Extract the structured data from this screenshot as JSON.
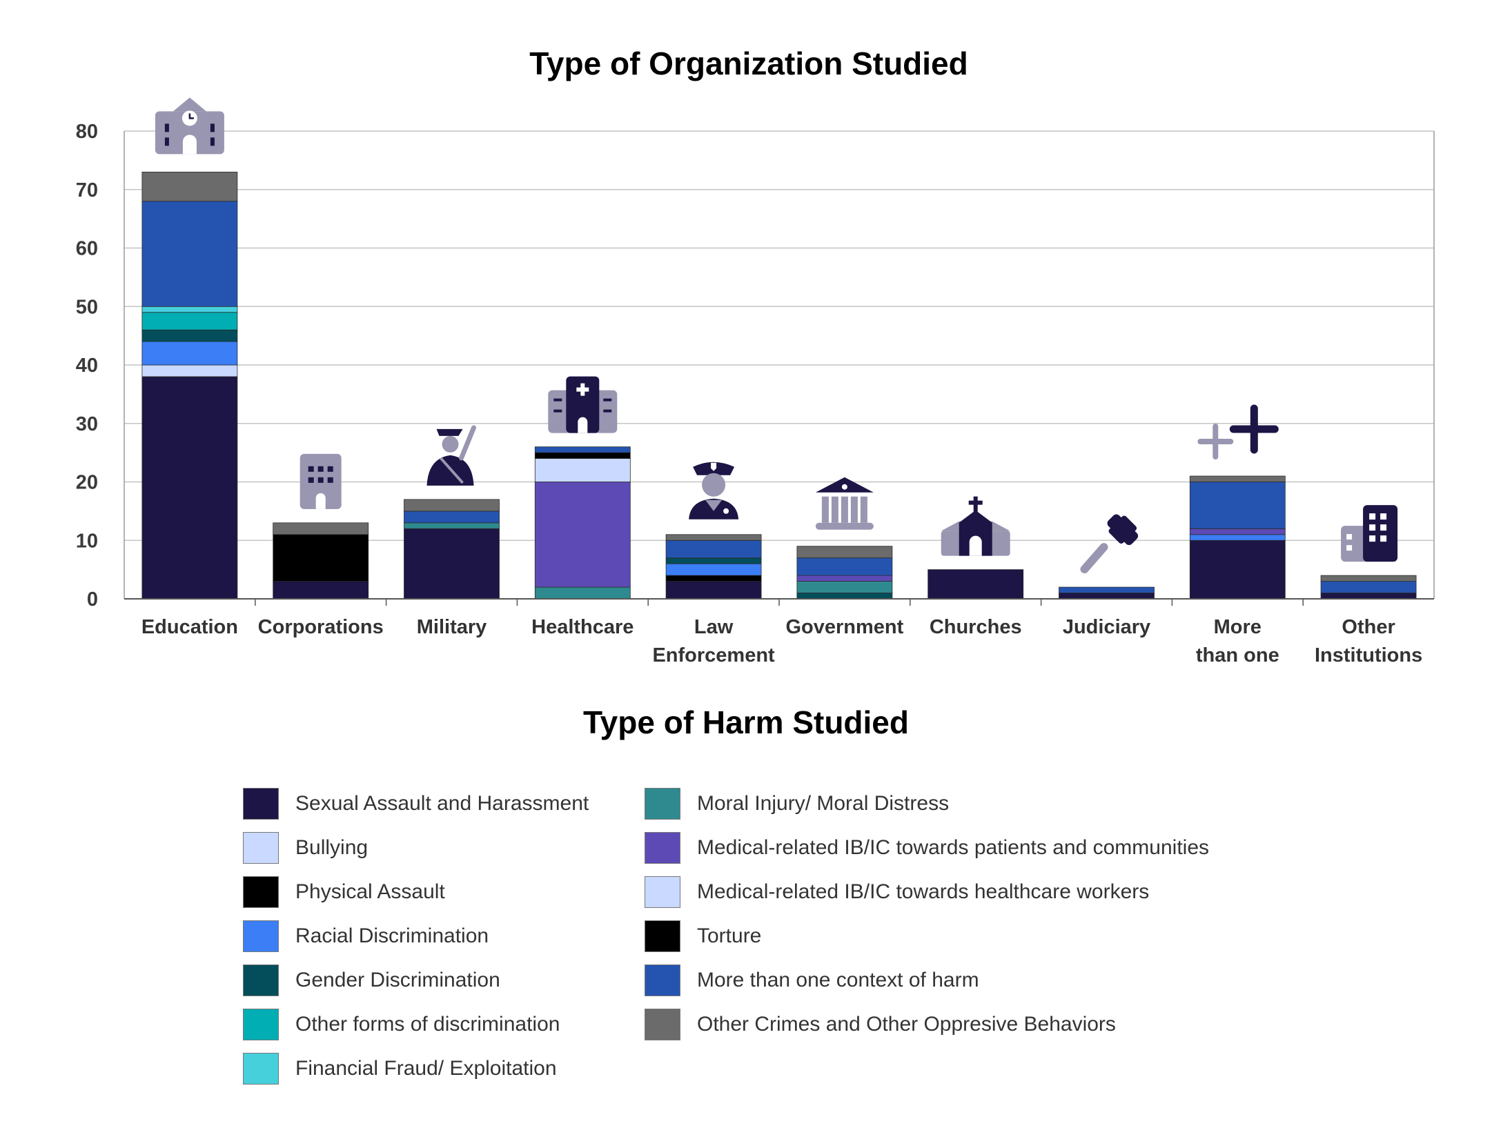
{
  "chart_data": {
    "type": "bar",
    "stacked": true,
    "title": "Type of Organization Studied",
    "ylim": [
      0,
      80
    ],
    "yticks": [
      0,
      10,
      20,
      30,
      40,
      50,
      60,
      70,
      80
    ],
    "grid": true,
    "categories": [
      "Education",
      "Corporations",
      "Military",
      "Healthcare",
      "Law Enforcement",
      "Government",
      "Churches",
      "Judiciary",
      "More than one",
      "Other Institutions"
    ],
    "category_label_lines": [
      [
        "Education"
      ],
      [
        "Corporations"
      ],
      [
        "Military"
      ],
      [
        "Healthcare"
      ],
      [
        "Law",
        "Enforcement"
      ],
      [
        "Government"
      ],
      [
        "Churches"
      ],
      [
        "Judiciary"
      ],
      [
        "More",
        "than one"
      ],
      [
        "Other",
        "Institutions"
      ]
    ],
    "category_icons": [
      "school-icon",
      "office-building-icon",
      "soldier-icon",
      "hospital-icon",
      "police-officer-icon",
      "government-building-icon",
      "church-icon",
      "gavel-icon",
      "plus-signs-icon",
      "apartment-building-icon"
    ],
    "legend_title": "Type of Harm Studied",
    "series": [
      {
        "name": "Sexual Assault and Harassment",
        "color": "#1c1545",
        "values": [
          38,
          3,
          12,
          0,
          3,
          0,
          5,
          1,
          10,
          1
        ]
      },
      {
        "name": "Bullying",
        "color": "#c9d9ff",
        "values": [
          2,
          0,
          0,
          0,
          0,
          0,
          0,
          0,
          0,
          0
        ]
      },
      {
        "name": "Physical Assault",
        "color": "#000000",
        "values": [
          0,
          8,
          0,
          0,
          1,
          0,
          0,
          0,
          0,
          0
        ]
      },
      {
        "name": "Racial Discrimination",
        "color": "#3b7ef5",
        "values": [
          4,
          0,
          0,
          0,
          2,
          0,
          0,
          0,
          1,
          0
        ]
      },
      {
        "name": "Gender Discrimination",
        "color": "#034e5a",
        "values": [
          2,
          0,
          0,
          0,
          1,
          1,
          0,
          0,
          0,
          0
        ]
      },
      {
        "name": "Other forms of discrimination",
        "color": "#00aeb3",
        "values": [
          3,
          0,
          0,
          0,
          0,
          0,
          0,
          0,
          0,
          0
        ]
      },
      {
        "name": "Financial Fraud/ Exploitation",
        "color": "#45d0dc",
        "values": [
          1,
          0,
          0,
          0,
          0,
          0,
          0,
          0,
          0,
          0
        ]
      },
      {
        "name": "Moral Injury/ Moral Distress",
        "color": "#2e8a8f",
        "values": [
          0,
          0,
          1,
          2,
          0,
          2,
          0,
          0,
          0,
          0
        ]
      },
      {
        "name": "Medical-related IB/IC towards patients and communities",
        "color": "#5e4ab5",
        "values": [
          0,
          0,
          0,
          18,
          0,
          1,
          0,
          0,
          1,
          0
        ]
      },
      {
        "name": "Medical-related IB/IC towards healthcare workers",
        "color": "#c9d9ff",
        "values": [
          0,
          0,
          0,
          4,
          0,
          0,
          0,
          0,
          0,
          0
        ]
      },
      {
        "name": "Torture",
        "color": "#000000",
        "values": [
          0,
          0,
          0,
          1,
          0,
          0,
          0,
          0,
          0,
          0
        ]
      },
      {
        "name": "More than one context of harm",
        "color": "#2454b0",
        "values": [
          18,
          0,
          2,
          1,
          3,
          3,
          0,
          1,
          8,
          2
        ]
      },
      {
        "name": "Other Crimes and Other Oppresive Behaviors",
        "color": "#6b6b6b",
        "values": [
          5,
          2,
          2,
          0,
          1,
          2,
          0,
          0,
          1,
          1
        ]
      }
    ]
  }
}
